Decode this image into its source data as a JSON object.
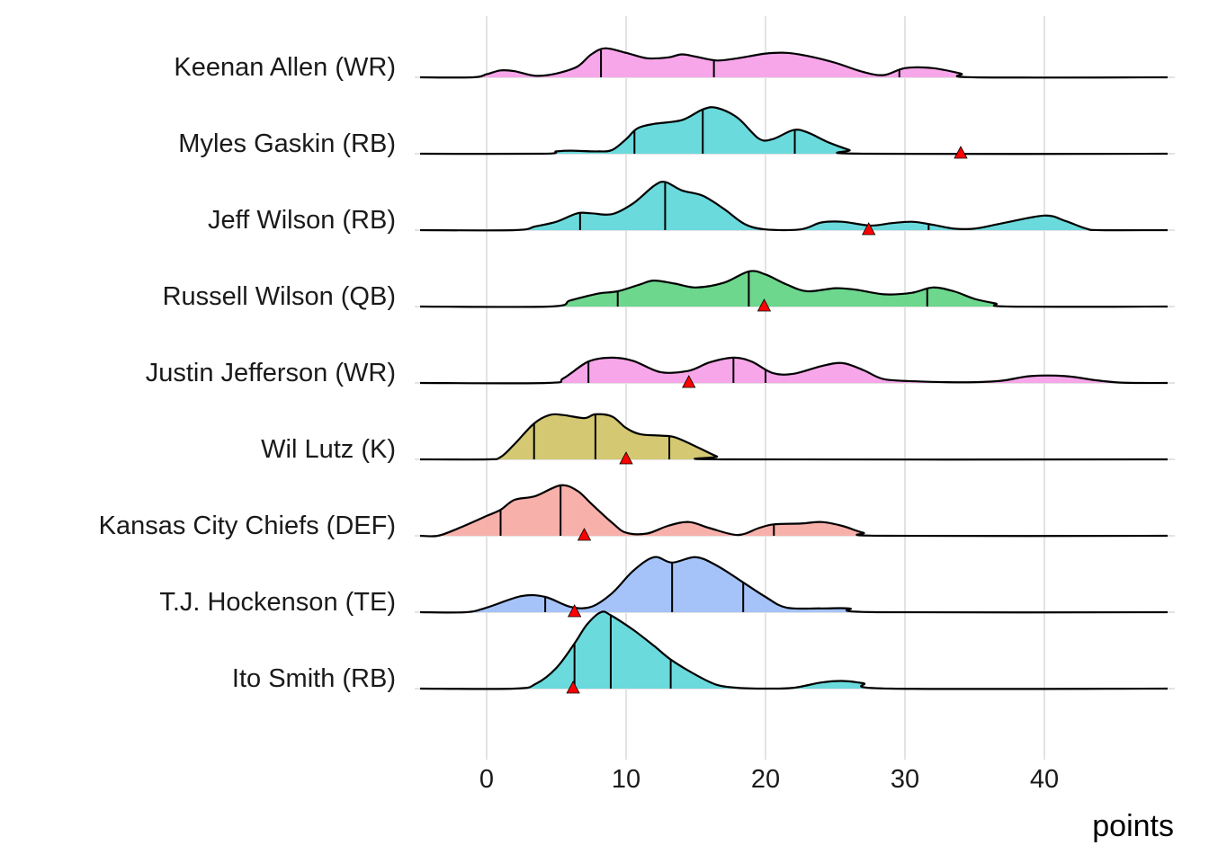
{
  "chart_data": {
    "type": "ridgeline",
    "title": "",
    "xlabel": "points",
    "ylabel": "",
    "xlim": [
      -4.8,
      49.2
    ],
    "xticks": [
      0,
      10,
      20,
      30,
      40
    ],
    "xtick_labels": [
      "0",
      "10",
      "20",
      "30",
      "40"
    ],
    "grid": true,
    "legend": "none",
    "quantile_lines": "quartiles (25%, 50%, 75%)",
    "marker": {
      "shape": "triangle",
      "color": "#ff0000",
      "meaning": "actual points"
    },
    "series": [
      {
        "name": "Keenan Allen (WR)",
        "position": "WR",
        "color": "#f8a1e9",
        "quartiles": [
          8.2,
          16.3,
          29.6
        ],
        "actual": null,
        "density": [
          [
            -4.8,
            0
          ],
          [
            -1,
            0
          ],
          [
            0,
            0.04
          ],
          [
            1,
            0.09
          ],
          [
            2,
            0.08
          ],
          [
            3.5,
            0.02
          ],
          [
            5,
            0.05
          ],
          [
            6.5,
            0.14
          ],
          [
            7.5,
            0.3
          ],
          [
            8.5,
            0.38
          ],
          [
            10,
            0.32
          ],
          [
            11.5,
            0.25
          ],
          [
            13,
            0.26
          ],
          [
            14,
            0.3
          ],
          [
            15,
            0.27
          ],
          [
            16.5,
            0.22
          ],
          [
            18,
            0.25
          ],
          [
            20,
            0.31
          ],
          [
            21.5,
            0.32
          ],
          [
            23,
            0.28
          ],
          [
            25,
            0.19
          ],
          [
            27,
            0.07
          ],
          [
            28.5,
            0.03
          ],
          [
            30,
            0.12
          ],
          [
            32,
            0.12
          ],
          [
            34,
            0.05
          ],
          [
            35,
            0
          ],
          [
            49.2,
            0
          ]
        ]
      },
      {
        "name": "Myles Gaskin (RB)",
        "position": "RB",
        "color": "#63d8db",
        "quartiles": [
          10.6,
          15.5,
          22.1
        ],
        "actual": 34.0,
        "density": [
          [
            -4.8,
            0
          ],
          [
            4,
            0
          ],
          [
            5,
            0.03
          ],
          [
            6,
            0.04
          ],
          [
            8,
            0.03
          ],
          [
            9,
            0.05
          ],
          [
            10,
            0.19
          ],
          [
            10.8,
            0.33
          ],
          [
            12,
            0.39
          ],
          [
            14,
            0.44
          ],
          [
            15.5,
            0.58
          ],
          [
            16.5,
            0.6
          ],
          [
            18,
            0.47
          ],
          [
            19.5,
            0.2
          ],
          [
            20.5,
            0.19
          ],
          [
            22,
            0.31
          ],
          [
            23,
            0.28
          ],
          [
            24.5,
            0.15
          ],
          [
            26,
            0.05
          ],
          [
            27,
            0
          ],
          [
            49.2,
            0
          ]
        ]
      },
      {
        "name": "Jeff Wilson (RB)",
        "position": "RB",
        "color": "#63d8db",
        "quartiles": [
          6.7,
          12.8,
          31.7
        ],
        "actual": 27.4,
        "density": [
          [
            -4.8,
            0
          ],
          [
            2,
            0
          ],
          [
            3.5,
            0.05
          ],
          [
            5,
            0.11
          ],
          [
            6.5,
            0.22
          ],
          [
            7.5,
            0.22
          ],
          [
            9,
            0.21
          ],
          [
            10.5,
            0.35
          ],
          [
            12,
            0.58
          ],
          [
            12.8,
            0.63
          ],
          [
            14,
            0.52
          ],
          [
            15.5,
            0.45
          ],
          [
            17,
            0.28
          ],
          [
            18.5,
            0.08
          ],
          [
            20,
            0.01
          ],
          [
            22.5,
            0.01
          ],
          [
            24,
            0.1
          ],
          [
            25.5,
            0.11
          ],
          [
            27.5,
            0.06
          ],
          [
            29,
            0.09
          ],
          [
            30.5,
            0.11
          ],
          [
            32,
            0.07
          ],
          [
            33.5,
            0.02
          ],
          [
            35,
            0.02
          ],
          [
            37,
            0.09
          ],
          [
            40,
            0.19
          ],
          [
            41.5,
            0.12
          ],
          [
            43,
            0.02
          ],
          [
            44,
            0
          ],
          [
            49.2,
            0
          ]
        ]
      },
      {
        "name": "Russell Wilson (QB)",
        "position": "QB",
        "color": "#65d587",
        "quartiles": [
          9.4,
          18.8,
          31.6
        ],
        "actual": 19.9,
        "density": [
          [
            -4.8,
            0
          ],
          [
            4.5,
            0
          ],
          [
            6,
            0.08
          ],
          [
            8,
            0.17
          ],
          [
            9.4,
            0.2
          ],
          [
            11,
            0.29
          ],
          [
            12,
            0.34
          ],
          [
            13.5,
            0.3
          ],
          [
            15,
            0.25
          ],
          [
            17,
            0.31
          ],
          [
            18.8,
            0.46
          ],
          [
            20,
            0.42
          ],
          [
            21.5,
            0.29
          ],
          [
            23,
            0.2
          ],
          [
            25,
            0.24
          ],
          [
            26.5,
            0.22
          ],
          [
            28.5,
            0.16
          ],
          [
            30.5,
            0.18
          ],
          [
            32,
            0.25
          ],
          [
            33.5,
            0.2
          ],
          [
            35,
            0.1
          ],
          [
            36.5,
            0.04
          ],
          [
            37.5,
            0
          ],
          [
            49.2,
            0
          ]
        ]
      },
      {
        "name": "Justin Jefferson (WR)",
        "position": "WR",
        "color": "#f8a1e9",
        "quartiles": [
          7.3,
          17.7,
          20.0
        ],
        "actual": 14.5,
        "density": [
          [
            -4.8,
            0
          ],
          [
            4.3,
            0
          ],
          [
            5.5,
            0.06
          ],
          [
            7.3,
            0.28
          ],
          [
            9,
            0.33
          ],
          [
            10.5,
            0.29
          ],
          [
            12.5,
            0.14
          ],
          [
            14.5,
            0.16
          ],
          [
            16,
            0.27
          ],
          [
            17.7,
            0.33
          ],
          [
            19,
            0.28
          ],
          [
            20.5,
            0.13
          ],
          [
            22,
            0.12
          ],
          [
            24,
            0.22
          ],
          [
            25.5,
            0.26
          ],
          [
            27,
            0.17
          ],
          [
            28.5,
            0.05
          ],
          [
            31,
            0.02
          ],
          [
            33,
            0.01
          ],
          [
            35,
            0.01
          ],
          [
            37,
            0.03
          ],
          [
            39,
            0.09
          ],
          [
            41.5,
            0.09
          ],
          [
            43.5,
            0.04
          ],
          [
            45,
            0.01
          ],
          [
            46.5,
            0
          ],
          [
            49.2,
            0
          ]
        ]
      },
      {
        "name": "Wil Lutz (K)",
        "position": "K",
        "color": "#d2c56b",
        "quartiles": [
          3.4,
          7.8,
          13.1
        ],
        "actual": 10.0,
        "density": [
          [
            -4.8,
            0
          ],
          [
            0,
            0
          ],
          [
            1,
            0.03
          ],
          [
            2,
            0.2
          ],
          [
            3.4,
            0.47
          ],
          [
            4.5,
            0.58
          ],
          [
            5.5,
            0.58
          ],
          [
            7,
            0.54
          ],
          [
            7.8,
            0.59
          ],
          [
            9,
            0.56
          ],
          [
            10,
            0.41
          ],
          [
            11,
            0.33
          ],
          [
            12.5,
            0.31
          ],
          [
            13.5,
            0.29
          ],
          [
            15,
            0.17
          ],
          [
            16.5,
            0.04
          ],
          [
            17.5,
            0
          ],
          [
            49.2,
            0
          ]
        ]
      },
      {
        "name": "Kansas City Chiefs (DEF)",
        "position": "DEF",
        "color": "#f8aca7",
        "quartiles": [
          1.0,
          5.3,
          20.6
        ],
        "actual": 7.0,
        "density": [
          [
            -4.8,
            0
          ],
          [
            -3.5,
            0
          ],
          [
            -2,
            0.1
          ],
          [
            0,
            0.26
          ],
          [
            1,
            0.34
          ],
          [
            2,
            0.47
          ],
          [
            3.5,
            0.52
          ],
          [
            5.3,
            0.66
          ],
          [
            6.5,
            0.59
          ],
          [
            7.5,
            0.42
          ],
          [
            9,
            0.17
          ],
          [
            10,
            0.04
          ],
          [
            11.5,
            0.03
          ],
          [
            13,
            0.13
          ],
          [
            14.5,
            0.18
          ],
          [
            16,
            0.1
          ],
          [
            18,
            0.01
          ],
          [
            19.5,
            0.1
          ],
          [
            20.6,
            0.15
          ],
          [
            22.5,
            0.16
          ],
          [
            24,
            0.18
          ],
          [
            25.5,
            0.13
          ],
          [
            27,
            0.04
          ],
          [
            28.5,
            0
          ],
          [
            49.2,
            0
          ]
        ]
      },
      {
        "name": "T.J. Hockenson (TE)",
        "position": "TE",
        "color": "#a0c0f8",
        "quartiles": [
          4.2,
          13.3,
          18.4
        ],
        "actual": 6.3,
        "density": [
          [
            -4.8,
            0
          ],
          [
            -1.5,
            0
          ],
          [
            0,
            0.06
          ],
          [
            2.5,
            0.21
          ],
          [
            4.2,
            0.2
          ],
          [
            6,
            0.07
          ],
          [
            7.5,
            0.07
          ],
          [
            9,
            0.25
          ],
          [
            10.5,
            0.54
          ],
          [
            12,
            0.72
          ],
          [
            13.3,
            0.65
          ],
          [
            15,
            0.72
          ],
          [
            16.5,
            0.61
          ],
          [
            18.4,
            0.39
          ],
          [
            20,
            0.2
          ],
          [
            21.5,
            0.06
          ],
          [
            24,
            0.05
          ],
          [
            26,
            0.05
          ],
          [
            28,
            0
          ],
          [
            49.2,
            0
          ]
        ]
      },
      {
        "name": "Ito Smith (RB)",
        "position": "RB",
        "color": "#63d8db",
        "quartiles": [
          6.3,
          8.9,
          13.2
        ],
        "actual": 6.2,
        "density": [
          [
            -4.8,
            0
          ],
          [
            2,
            0
          ],
          [
            3.5,
            0.06
          ],
          [
            5,
            0.27
          ],
          [
            6.3,
            0.59
          ],
          [
            7.2,
            0.84
          ],
          [
            8.2,
            1.0
          ],
          [
            8.9,
            0.96
          ],
          [
            10.5,
            0.77
          ],
          [
            12,
            0.56
          ],
          [
            13.2,
            0.38
          ],
          [
            15,
            0.18
          ],
          [
            16.5,
            0.05
          ],
          [
            18,
            0.01
          ],
          [
            20,
            0
          ],
          [
            22,
            0.01
          ],
          [
            24,
            0.08
          ],
          [
            25.5,
            0.1
          ],
          [
            27,
            0.07
          ],
          [
            29,
            0
          ],
          [
            49.2,
            0
          ]
        ]
      }
    ]
  }
}
